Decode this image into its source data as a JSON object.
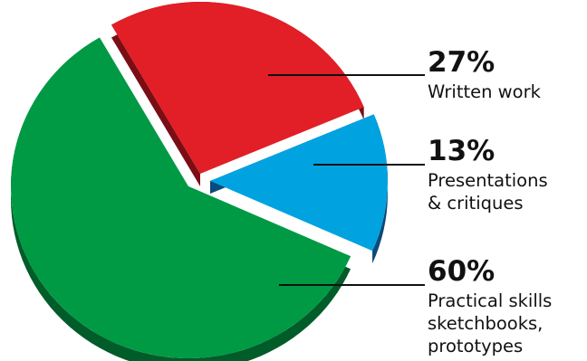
{
  "chart_data": {
    "type": "pie",
    "style": "3d-exploded",
    "title": "",
    "slices": [
      {
        "value": 27,
        "percent_label": "27%",
        "label_lines": [
          "Written work"
        ],
        "color": "#e21e26",
        "side_color": "#7a0e14"
      },
      {
        "value": 13,
        "percent_label": "13%",
        "label_lines": [
          "Presentations",
          "& critiques"
        ],
        "color": "#00a3e0",
        "side_color": "#0a4a7c"
      },
      {
        "value": 60,
        "percent_label": "60%",
        "label_lines": [
          "Practical skills",
          "sketchbooks,",
          "prototypes"
        ],
        "color": "#009a44",
        "side_color": "#005c28"
      }
    ]
  }
}
